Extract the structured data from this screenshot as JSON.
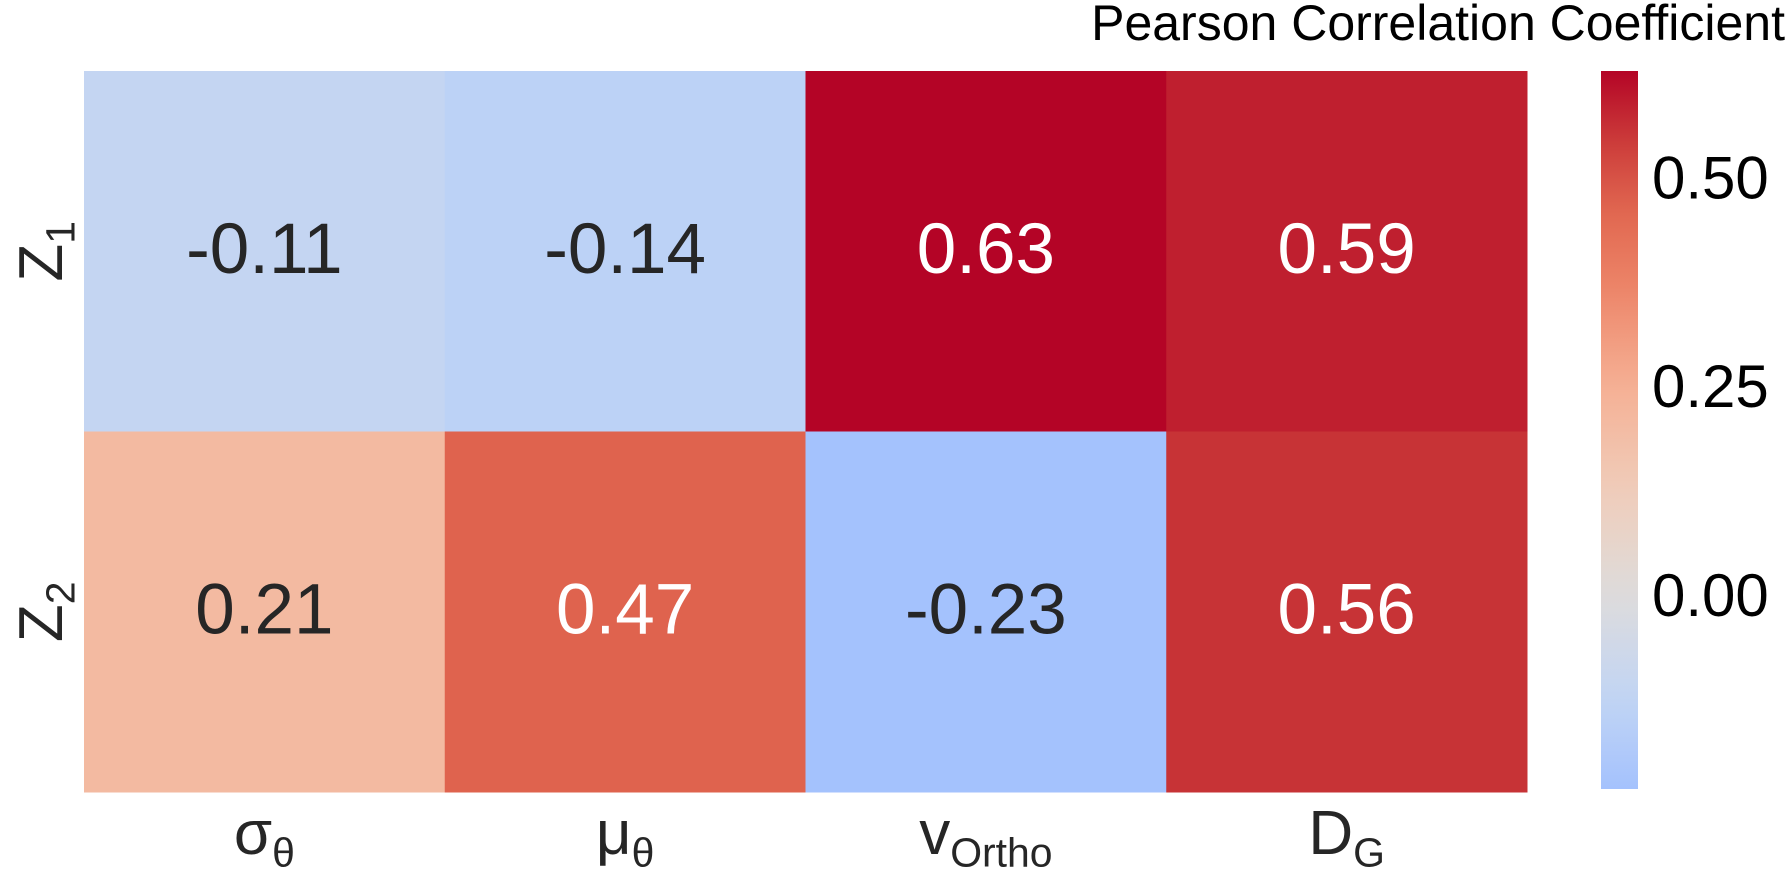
{
  "chart_data": {
    "type": "heatmap",
    "colorbar_title": "Pearson Correlation Coefficient",
    "x_labels": [
      {
        "main": "σ",
        "sub": "θ"
      },
      {
        "main": "μ",
        "sub": "θ"
      },
      {
        "main": "v",
        "sub": "Ortho"
      },
      {
        "main": "D",
        "sub": "G"
      }
    ],
    "y_labels": [
      {
        "main": "Z",
        "sub": "1"
      },
      {
        "main": "Z",
        "sub": "2"
      }
    ],
    "values": [
      [
        -0.11,
        -0.14,
        0.63,
        0.59
      ],
      [
        0.21,
        0.47,
        -0.23,
        0.56
      ]
    ],
    "colormap": "coolwarm",
    "center": 0,
    "clim": [
      -0.23,
      0.63
    ],
    "colorbar_ticks": [
      {
        "value": 0,
        "label": "0.00"
      },
      0.25,
      {
        "value": 0.5,
        "label": "0.50"
      }
    ]
  }
}
